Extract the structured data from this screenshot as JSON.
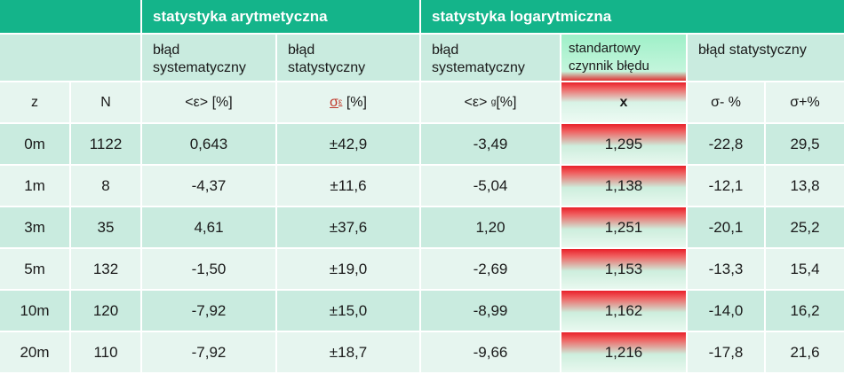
{
  "header": {
    "group_arith": "statystyka arytmetyczna",
    "group_log": "statystyka  logarytmiczna",
    "sub_sys_arith": "błąd\nsystematyczny",
    "sub_stat_arith": "błąd\nstatystyczny",
    "sub_sys_log": "błąd\nsystematyczny",
    "sub_factor": "standartowy\nczynnik błędu",
    "sub_stat_log": "błąd statystyczny",
    "col_z": "z",
    "col_N": "N",
    "col_eps": "<ε> [%]",
    "col_sigma_main": "σ",
    "col_sigma_sub": "ε",
    "col_sigma_unit": " [%]",
    "col_epsg_main": "<ε> ",
    "col_epsg_sub": "g",
    "col_epsg_unit": "[%]",
    "col_x": "x",
    "col_sminus": "σ- %",
    "col_splus": "σ+%"
  },
  "rows": [
    {
      "z": "0m",
      "N": "1122",
      "eps": "0,643",
      "sigma": "±42,9",
      "epsg": "-3,49",
      "x": "1,295",
      "sminus": "-22,8",
      "splus": "29,5"
    },
    {
      "z": "1m",
      "N": "8",
      "eps": "-4,37",
      "sigma": "±11,6",
      "epsg": "-5,04",
      "x": "1,138",
      "sminus": "-12,1",
      "splus": "13,8"
    },
    {
      "z": "3m",
      "N": "35",
      "eps": "4,61",
      "sigma": "±37,6",
      "epsg": "1,20",
      "x": "1,251",
      "sminus": "-20,1",
      "splus": "25,2"
    },
    {
      "z": "5m",
      "N": "132",
      "eps": "-1,50",
      "sigma": "±19,0",
      "epsg": "-2,69",
      "x": "1,153",
      "sminus": "-13,3",
      "splus": "15,4"
    },
    {
      "z": "10m",
      "N": "120",
      "eps": "-7,92",
      "sigma": "±15,0",
      "epsg": "-8,99",
      "x": "1,162",
      "sminus": "-14,0",
      "splus": "16,2"
    },
    {
      "z": "20m",
      "N": "110",
      "eps": "-7,92",
      "sigma": "±18,7",
      "epsg": "-9,66",
      "x": "1,216",
      "sminus": "-17,8",
      "splus": "21,6"
    }
  ],
  "colors": {
    "header_green": "#14b48a",
    "row_dark": "#c9ebdf",
    "row_light": "#e6f5ef",
    "accent_red": "#e8202a"
  }
}
